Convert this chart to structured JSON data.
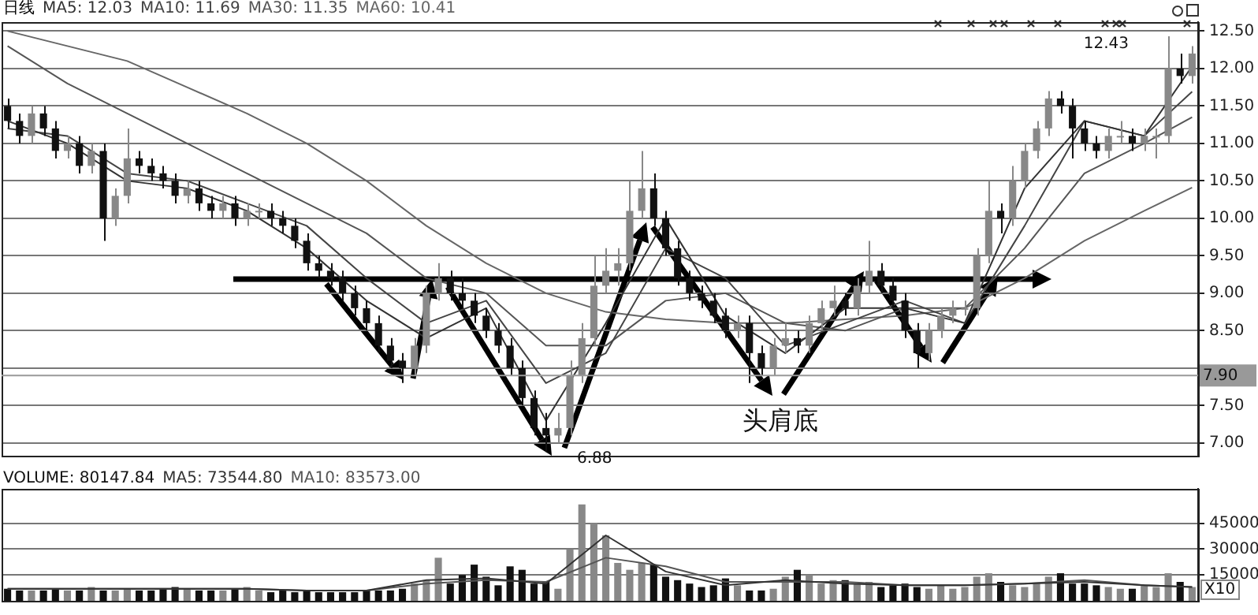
{
  "chart_data": [
    {
      "type": "candlestick",
      "title": "日线",
      "legend": "top left",
      "grid": "y",
      "categories": [
        null,
        null,
        null,
        null,
        null,
        null,
        null,
        null,
        null,
        null,
        null,
        null,
        null,
        null,
        null,
        null,
        null,
        null,
        null,
        null,
        null,
        null,
        null,
        null,
        null,
        null,
        null,
        null,
        null,
        null,
        null,
        null,
        null,
        null,
        null,
        null,
        null,
        null,
        null,
        null,
        null,
        null,
        null,
        null,
        null,
        null,
        null,
        null,
        null,
        null,
        null,
        null,
        null,
        null,
        null,
        null,
        null,
        null,
        null,
        null,
        null,
        null,
        null,
        null,
        null,
        null,
        null,
        null,
        null,
        null,
        null,
        null,
        null,
        null,
        null,
        null,
        null,
        null,
        null,
        null,
        null,
        null,
        null,
        null,
        null,
        null,
        null,
        null,
        null,
        null,
        null,
        null,
        null,
        null,
        null,
        null,
        null,
        null,
        null,
        null
      ],
      "ohlc": [
        [
          11.5,
          11.6,
          11.2,
          11.3
        ],
        [
          11.3,
          11.4,
          11.0,
          11.1
        ],
        [
          11.1,
          11.5,
          11.0,
          11.4
        ],
        [
          11.4,
          11.5,
          11.1,
          11.2
        ],
        [
          11.2,
          11.3,
          10.8,
          10.9
        ],
        [
          10.9,
          11.1,
          10.8,
          11.0
        ],
        [
          11.0,
          11.1,
          10.6,
          10.7
        ],
        [
          10.7,
          11.0,
          10.6,
          10.9
        ],
        [
          10.9,
          11.0,
          9.7,
          10.0
        ],
        [
          10.0,
          10.4,
          9.9,
          10.3
        ],
        [
          10.3,
          11.2,
          10.2,
          10.8
        ],
        [
          10.8,
          10.9,
          10.6,
          10.7
        ],
        [
          10.7,
          10.8,
          10.5,
          10.6
        ],
        [
          10.6,
          10.7,
          10.4,
          10.5
        ],
        [
          10.5,
          10.6,
          10.2,
          10.3
        ],
        [
          10.3,
          10.5,
          10.2,
          10.4
        ],
        [
          10.4,
          10.5,
          10.1,
          10.2
        ],
        [
          10.2,
          10.3,
          10.0,
          10.1
        ],
        [
          10.1,
          10.3,
          10.0,
          10.2
        ],
        [
          10.2,
          10.3,
          9.9,
          10.0
        ],
        [
          10.0,
          10.2,
          9.9,
          10.1
        ],
        [
          10.1,
          10.2,
          10.0,
          10.1
        ],
        [
          10.1,
          10.2,
          9.9,
          10.0
        ],
        [
          10.0,
          10.1,
          9.8,
          9.9
        ],
        [
          9.9,
          10.0,
          9.6,
          9.7
        ],
        [
          9.7,
          9.8,
          9.3,
          9.4
        ],
        [
          9.4,
          9.5,
          9.2,
          9.3
        ],
        [
          9.3,
          9.4,
          9.1,
          9.2
        ],
        [
          9.2,
          9.3,
          8.9,
          9.0
        ],
        [
          9.0,
          9.1,
          8.7,
          8.8
        ],
        [
          8.8,
          8.9,
          8.5,
          8.6
        ],
        [
          8.6,
          8.7,
          8.2,
          8.3
        ],
        [
          8.3,
          8.4,
          8.0,
          8.1
        ],
        [
          8.1,
          8.2,
          7.8,
          8.0
        ],
        [
          8.0,
          8.4,
          7.9,
          8.3
        ],
        [
          8.3,
          9.1,
          8.2,
          9.0
        ],
        [
          9.0,
          9.4,
          8.9,
          9.2
        ],
        [
          9.2,
          9.3,
          8.9,
          9.0
        ],
        [
          9.0,
          9.2,
          8.8,
          8.9
        ],
        [
          8.9,
          9.0,
          8.6,
          8.7
        ],
        [
          8.7,
          8.8,
          8.4,
          8.5
        ],
        [
          8.5,
          8.6,
          8.2,
          8.3
        ],
        [
          8.3,
          8.4,
          7.9,
          8.0
        ],
        [
          8.0,
          8.1,
          7.5,
          7.6
        ],
        [
          7.6,
          7.7,
          7.1,
          7.2
        ],
        [
          7.2,
          7.4,
          6.88,
          7.1
        ],
        [
          7.1,
          7.4,
          7.0,
          7.2
        ],
        [
          7.2,
          8.1,
          7.1,
          7.9
        ],
        [
          7.9,
          8.6,
          7.8,
          8.4
        ],
        [
          8.4,
          9.5,
          8.3,
          9.1
        ],
        [
          9.1,
          9.6,
          9.0,
          9.3
        ],
        [
          9.3,
          9.6,
          9.1,
          9.4
        ],
        [
          9.4,
          10.5,
          9.3,
          10.1
        ],
        [
          10.1,
          10.9,
          10.0,
          10.4
        ],
        [
          10.4,
          10.6,
          9.9,
          10.0
        ],
        [
          10.0,
          10.1,
          9.5,
          9.6
        ],
        [
          9.6,
          9.7,
          9.1,
          9.2
        ],
        [
          9.2,
          9.3,
          8.9,
          9.0
        ],
        [
          9.0,
          9.1,
          8.8,
          8.9
        ],
        [
          8.9,
          9.0,
          8.6,
          8.7
        ],
        [
          8.7,
          8.8,
          8.4,
          8.5
        ],
        [
          8.5,
          8.7,
          8.4,
          8.6
        ],
        [
          8.6,
          8.7,
          7.8,
          8.2
        ],
        [
          8.2,
          8.3,
          7.9,
          8.0
        ],
        [
          8.0,
          8.4,
          7.9,
          8.3
        ],
        [
          8.3,
          8.6,
          8.2,
          8.4
        ],
        [
          8.4,
          8.5,
          8.2,
          8.3
        ],
        [
          8.3,
          8.7,
          8.2,
          8.6
        ],
        [
          8.6,
          8.9,
          8.5,
          8.8
        ],
        [
          8.8,
          9.1,
          8.7,
          8.9
        ],
        [
          8.9,
          9.0,
          8.7,
          8.8
        ],
        [
          8.8,
          9.2,
          8.7,
          9.1
        ],
        [
          9.1,
          9.7,
          9.0,
          9.3
        ],
        [
          9.3,
          9.4,
          9.0,
          9.1
        ],
        [
          9.1,
          9.2,
          8.8,
          8.9
        ],
        [
          8.9,
          9.0,
          8.4,
          8.5
        ],
        [
          8.5,
          8.6,
          8.0,
          8.2
        ],
        [
          8.2,
          8.6,
          8.1,
          8.5
        ],
        [
          8.5,
          8.8,
          8.4,
          8.7
        ],
        [
          8.7,
          8.9,
          8.6,
          8.8
        ],
        [
          8.8,
          8.9,
          8.7,
          8.8
        ],
        [
          8.8,
          9.6,
          8.7,
          9.5
        ],
        [
          9.5,
          10.5,
          9.4,
          10.1
        ],
        [
          10.1,
          10.2,
          9.8,
          10.0
        ],
        [
          10.0,
          10.7,
          9.9,
          10.5
        ],
        [
          10.5,
          11.0,
          10.4,
          10.9
        ],
        [
          10.9,
          11.3,
          10.8,
          11.2
        ],
        [
          11.2,
          11.7,
          11.1,
          11.6
        ],
        [
          11.6,
          11.7,
          11.4,
          11.5
        ],
        [
          11.5,
          11.6,
          10.8,
          11.2
        ],
        [
          11.2,
          11.3,
          10.9,
          11.0
        ],
        [
          11.0,
          11.1,
          10.8,
          10.9
        ],
        [
          10.9,
          11.2,
          10.8,
          11.1
        ],
        [
          11.1,
          11.3,
          11.0,
          11.1
        ],
        [
          11.1,
          11.2,
          10.9,
          11.0
        ],
        [
          11.0,
          11.2,
          10.9,
          11.1
        ],
        [
          11.1,
          11.2,
          10.8,
          11.1
        ],
        [
          11.1,
          12.43,
          11.0,
          12.0
        ],
        [
          12.0,
          12.2,
          11.8,
          11.9
        ],
        [
          11.9,
          12.3,
          11.8,
          12.2
        ]
      ],
      "colors": [
        "#111111",
        "#111111",
        "#888888",
        "#111111",
        "#111111",
        "#888888",
        "#111111",
        "#888888",
        "#111111",
        "#888888",
        "#888888",
        "#111111",
        "#111111",
        "#111111",
        "#111111",
        "#888888",
        "#111111",
        "#111111",
        "#888888",
        "#111111",
        "#888888",
        "#888888",
        "#111111",
        "#111111",
        "#111111",
        "#111111",
        "#111111",
        "#111111",
        "#111111",
        "#111111",
        "#111111",
        "#111111",
        "#111111",
        "#111111",
        "#888888",
        "#888888",
        "#888888",
        "#111111",
        "#111111",
        "#111111",
        "#111111",
        "#111111",
        "#111111",
        "#111111",
        "#111111",
        "#111111",
        "#888888",
        "#888888",
        "#888888",
        "#888888",
        "#888888",
        "#888888",
        "#888888",
        "#888888",
        "#111111",
        "#111111",
        "#111111",
        "#111111",
        "#111111",
        "#111111",
        "#111111",
        "#888888",
        "#111111",
        "#111111",
        "#888888",
        "#888888",
        "#111111",
        "#888888",
        "#888888",
        "#888888",
        "#111111",
        "#888888",
        "#888888",
        "#111111",
        "#111111",
        "#111111",
        "#111111",
        "#888888",
        "#888888",
        "#888888",
        "#888888",
        "#888888",
        "#888888",
        "#111111",
        "#888888",
        "#888888",
        "#888888",
        "#888888",
        "#111111",
        "#111111",
        "#111111",
        "#111111",
        "#888888",
        "#888888",
        "#111111",
        "#888888",
        "#888888",
        "#888888",
        "#111111",
        "#888888"
      ],
      "series": [
        {
          "type": "line",
          "name": "MA5: 12.03",
          "color": "#333333",
          "values": [
            11.3,
            null,
            null,
            null,
            null,
            11.0,
            null,
            null,
            null,
            null,
            10.5,
            null,
            null,
            null,
            null,
            10.4,
            null,
            null,
            null,
            null,
            10.1,
            null,
            null,
            null,
            null,
            9.6,
            null,
            null,
            null,
            null,
            8.9,
            null,
            null,
            null,
            null,
            8.4,
            null,
            null,
            null,
            null,
            8.8,
            null,
            null,
            null,
            null,
            7.3,
            null,
            null,
            null,
            null,
            8.6,
            null,
            null,
            null,
            null,
            10.0,
            null,
            null,
            null,
            null,
            8.7,
            null,
            null,
            null,
            null,
            8.2,
            null,
            null,
            null,
            null,
            8.8,
            null,
            null,
            null,
            null,
            8.8,
            null,
            null,
            null,
            null,
            8.6,
            null,
            null,
            null,
            null,
            10.4,
            null,
            null,
            null,
            null,
            11.3,
            null,
            null,
            null,
            null,
            11.1,
            null,
            null,
            null,
            12.03
          ]
        },
        {
          "type": "line",
          "name": "MA10: 11.69",
          "color": "#444444",
          "values": [
            11.2,
            null,
            null,
            null,
            null,
            11.1,
            null,
            null,
            null,
            null,
            10.6,
            null,
            null,
            null,
            null,
            10.5,
            null,
            null,
            null,
            null,
            10.2,
            null,
            null,
            null,
            null,
            9.9,
            null,
            null,
            null,
            null,
            9.2,
            null,
            null,
            null,
            null,
            8.6,
            null,
            null,
            null,
            null,
            8.9,
            null,
            null,
            null,
            null,
            7.8,
            null,
            null,
            null,
            null,
            8.2,
            null,
            null,
            null,
            null,
            9.6,
            null,
            null,
            null,
            null,
            9.2,
            null,
            null,
            null,
            null,
            8.3,
            null,
            null,
            null,
            null,
            8.6,
            null,
            null,
            null,
            null,
            8.9,
            null,
            null,
            null,
            null,
            8.6,
            null,
            null,
            null,
            null,
            9.9,
            null,
            null,
            null,
            null,
            11.3,
            null,
            null,
            null,
            null,
            11.1,
            null,
            null,
            null,
            11.69
          ]
        },
        {
          "type": "line",
          "name": "MA30: 11.35",
          "color": "#555555",
          "values": [
            12.3,
            null,
            null,
            null,
            null,
            11.8,
            null,
            null,
            null,
            null,
            11.4,
            null,
            null,
            null,
            null,
            11.0,
            null,
            null,
            null,
            null,
            10.6,
            null,
            null,
            null,
            null,
            10.2,
            null,
            null,
            null,
            null,
            9.8,
            null,
            null,
            null,
            null,
            9.2,
            null,
            null,
            null,
            null,
            9.0,
            null,
            null,
            null,
            null,
            8.3,
            null,
            null,
            null,
            null,
            8.3,
            null,
            null,
            null,
            null,
            8.9,
            null,
            null,
            null,
            null,
            9.0,
            null,
            null,
            null,
            null,
            8.6,
            null,
            null,
            null,
            null,
            8.5,
            null,
            null,
            null,
            null,
            8.8,
            null,
            null,
            null,
            null,
            8.8,
            null,
            null,
            null,
            null,
            9.6,
            null,
            null,
            null,
            null,
            10.6,
            null,
            null,
            null,
            null,
            11.0,
            null,
            null,
            null,
            11.35
          ]
        },
        {
          "type": "line",
          "name": "MA60: 10.41",
          "color": "#666666",
          "values": [
            12.5,
            null,
            null,
            null,
            null,
            12.3,
            null,
            null,
            null,
            null,
            12.1,
            null,
            null,
            null,
            null,
            11.75,
            null,
            null,
            null,
            null,
            11.4,
            null,
            null,
            null,
            null,
            11.0,
            null,
            null,
            null,
            null,
            10.5,
            null,
            null,
            null,
            null,
            9.9,
            null,
            null,
            null,
            null,
            9.4,
            null,
            null,
            null,
            null,
            9.0,
            null,
            null,
            null,
            null,
            8.75,
            null,
            null,
            null,
            null,
            8.65,
            null,
            null,
            null,
            null,
            8.6,
            null,
            null,
            null,
            null,
            8.6,
            null,
            null,
            null,
            null,
            8.65,
            null,
            null,
            null,
            null,
            8.7,
            null,
            null,
            null,
            null,
            8.8,
            null,
            null,
            null,
            null,
            9.2,
            null,
            null,
            null,
            null,
            9.7,
            null,
            null,
            null,
            null,
            10.1,
            null,
            null,
            null,
            10.41
          ]
        }
      ],
      "ylim": [
        6.83,
        12.62
      ],
      "yticks": [
        {
          "value": 7,
          "label": "7.00"
        },
        {
          "value": 7.5,
          "label": "7.50"
        },
        {
          "value": 8,
          "label": null
        },
        {
          "value": 8.5,
          "label": "8.50"
        },
        {
          "value": 9,
          "label": "9.00"
        },
        {
          "value": 9.5,
          "label": "9.50"
        },
        {
          "value": 10,
          "label": "10.00"
        },
        {
          "value": 10.5,
          "label": "10.50"
        },
        {
          "value": 11,
          "label": "11.00"
        },
        {
          "value": 11.5,
          "label": "11.50"
        },
        {
          "value": 12,
          "label": "12.00"
        },
        {
          "value": 12.5,
          "label": "12.50"
        }
      ],
      "ref_lines": [
        {
          "axis": "y",
          "value": 7.9,
          "label": "7.90",
          "color": "#999999"
        }
      ],
      "annotations": [
        "6.88",
        "12.43",
        "头肩底"
      ]
    },
    {
      "type": "bar",
      "legend": "top left",
      "grid": "y",
      "categories": [
        null,
        null,
        null,
        null,
        null,
        null,
        null,
        null,
        null,
        null,
        null,
        null,
        null,
        null,
        null,
        null,
        null,
        null,
        null,
        null,
        null,
        null,
        null,
        null,
        null,
        null,
        null,
        null,
        null,
        null,
        null,
        null,
        null,
        null,
        null,
        null,
        null,
        null,
        null,
        null,
        null,
        null,
        null,
        null,
        null,
        null,
        null,
        null,
        null,
        null,
        null,
        null,
        null,
        null,
        null,
        null,
        null,
        null,
        null,
        null,
        null,
        null,
        null,
        null,
        null,
        null,
        null,
        null,
        null,
        null,
        null,
        null,
        null,
        null,
        null,
        null,
        null,
        null,
        null,
        null,
        null,
        null,
        null,
        null,
        null,
        null,
        null,
        null,
        null,
        null,
        null,
        null,
        null,
        null,
        null,
        null,
        null,
        null,
        null,
        null
      ],
      "series": [
        {
          "type": "bar",
          "name": "VOLUME: 80147.84",
          "colors": [
            "#111111",
            "#111111",
            "#888888",
            "#111111",
            "#111111",
            "#888888",
            "#111111",
            "#888888",
            "#111111",
            "#888888",
            "#888888",
            "#111111",
            "#111111",
            "#111111",
            "#111111",
            "#888888",
            "#111111",
            "#111111",
            "#888888",
            "#111111",
            "#888888",
            "#888888",
            "#111111",
            "#111111",
            "#111111",
            "#111111",
            "#111111",
            "#111111",
            "#111111",
            "#111111",
            "#111111",
            "#111111",
            "#111111",
            "#111111",
            "#888888",
            "#888888",
            "#888888",
            "#111111",
            "#111111",
            "#111111",
            "#111111",
            "#111111",
            "#111111",
            "#111111",
            "#111111",
            "#111111",
            "#888888",
            "#888888",
            "#888888",
            "#888888",
            "#888888",
            "#888888",
            "#888888",
            "#888888",
            "#111111",
            "#111111",
            "#111111",
            "#111111",
            "#111111",
            "#111111",
            "#111111",
            "#888888",
            "#111111",
            "#111111",
            "#888888",
            "#888888",
            "#111111",
            "#888888",
            "#888888",
            "#888888",
            "#111111",
            "#888888",
            "#888888",
            "#111111",
            "#111111",
            "#111111",
            "#111111",
            "#888888",
            "#888888",
            "#888888",
            "#888888",
            "#888888",
            "#888888",
            "#111111",
            "#888888",
            "#888888",
            "#888888",
            "#888888",
            "#111111",
            "#111111",
            "#111111",
            "#111111",
            "#888888",
            "#888888",
            "#111111",
            "#888888",
            "#888888",
            "#888888",
            "#111111",
            "#888888"
          ],
          "values": [
            7000,
            6000,
            6000,
            6000,
            7000,
            6000,
            6000,
            8000,
            6000,
            6000,
            7000,
            6000,
            6000,
            7000,
            8000,
            7000,
            6000,
            6000,
            6000,
            7000,
            8000,
            6000,
            5000,
            6000,
            5000,
            6000,
            5000,
            5000,
            5000,
            5000,
            6000,
            6000,
            6000,
            7000,
            10000,
            12000,
            25000,
            10000,
            15000,
            21000,
            14000,
            9000,
            20000,
            18000,
            10000,
            11000,
            7000,
            30000,
            56000,
            45000,
            38000,
            22000,
            18000,
            22000,
            21000,
            14000,
            12000,
            10000,
            8000,
            9000,
            13000,
            9000,
            6000,
            6000,
            7000,
            14000,
            18000,
            15000,
            10000,
            12000,
            12000,
            10000,
            11000,
            8000,
            9000,
            10000,
            8000,
            7000,
            9000,
            7000,
            8000,
            14000,
            16000,
            11000,
            9000,
            8000,
            10000,
            14000,
            16000,
            10000,
            10000,
            9000,
            8000,
            7000,
            7000,
            9000,
            8000,
            16000,
            11000,
            8000
          ]
        },
        {
          "type": "line",
          "name": "MA5: 73544.80",
          "color": "#333333",
          "values": [
            7000,
            null,
            null,
            null,
            null,
            7000,
            null,
            null,
            null,
            null,
            7000,
            null,
            null,
            null,
            null,
            7000,
            null,
            null,
            null,
            null,
            7000,
            null,
            null,
            null,
            null,
            6000,
            null,
            null,
            null,
            null,
            6000,
            null,
            null,
            null,
            null,
            12000,
            null,
            null,
            null,
            null,
            13000,
            null,
            null,
            null,
            null,
            10000,
            null,
            null,
            null,
            null,
            38000,
            null,
            null,
            null,
            null,
            17000,
            null,
            null,
            null,
            null,
            9000,
            null,
            null,
            null,
            null,
            12000,
            null,
            null,
            null,
            null,
            10000,
            null,
            null,
            null,
            null,
            9000,
            null,
            null,
            null,
            null,
            9000,
            null,
            null,
            null,
            null,
            10000,
            null,
            null,
            null,
            null,
            11000,
            null,
            null,
            null,
            null,
            9000,
            null,
            null,
            null,
            8000
          ]
        },
        {
          "type": "line",
          "name": "MA10: 83573.00",
          "color": "#555555",
          "values": [
            7000,
            null,
            null,
            null,
            null,
            7000,
            null,
            null,
            null,
            null,
            7000,
            null,
            null,
            null,
            null,
            7000,
            null,
            null,
            null,
            null,
            7000,
            null,
            null,
            null,
            null,
            6000,
            null,
            null,
            null,
            null,
            6000,
            null,
            null,
            null,
            null,
            10000,
            null,
            null,
            null,
            null,
            12000,
            null,
            null,
            null,
            null,
            11000,
            null,
            null,
            null,
            null,
            25000,
            null,
            null,
            null,
            null,
            20000,
            null,
            null,
            null,
            null,
            11000,
            null,
            null,
            null,
            null,
            11000,
            null,
            null,
            null,
            null,
            11000,
            null,
            null,
            null,
            null,
            9000,
            null,
            null,
            null,
            null,
            9000,
            null,
            null,
            null,
            null,
            10000,
            null,
            null,
            null,
            null,
            12000,
            null,
            null,
            null,
            null,
            9000,
            null,
            null,
            null,
            8000
          ]
        }
      ],
      "ylim": [
        0,
        65000
      ],
      "yticks": [
        15000,
        30000,
        45000
      ],
      "annotations": [
        "X10"
      ]
    }
  ]
}
